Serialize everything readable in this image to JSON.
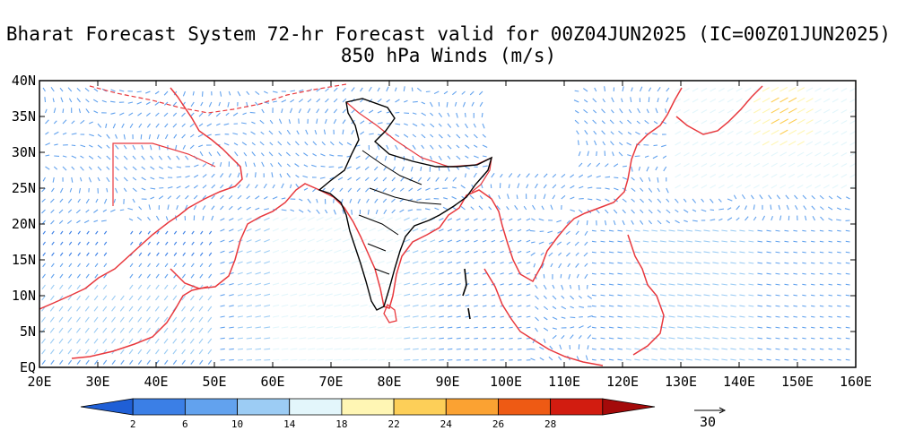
{
  "title_line1": "Bharat Forecast System 72-hr Forecast valid for 00Z04JUN2025 (IC=00Z01JUN2025)",
  "title_line2": "850 hPa Winds (m/s)",
  "lat_ticks": [
    "EQ",
    "5N",
    "10N",
    "15N",
    "20N",
    "25N",
    "30N",
    "35N",
    "40N"
  ],
  "lon_ticks": [
    "20E",
    "30E",
    "40E",
    "50E",
    "60E",
    "70E",
    "80E",
    "90E",
    "100E",
    "110E",
    "120E",
    "130E",
    "140E",
    "150E",
    "160E"
  ],
  "map": {
    "projection": "lat-lon",
    "lon_range": [
      20,
      160
    ],
    "lat_range": [
      0,
      40
    ],
    "field": "850 hPa wind vectors",
    "boundary_colors": {
      "countries": "#e8383d",
      "india_states": "#000000"
    }
  },
  "colorbar": {
    "labels": [
      "2",
      "6",
      "10",
      "14",
      "18",
      "22",
      "24",
      "26",
      "28"
    ],
    "colors": [
      "#1f5fd6",
      "#3b7fe6",
      "#62a2ee",
      "#9cccf4",
      "#e3f6fb",
      "#fff6b4",
      "#fdcf58",
      "#fba232",
      "#ee5a14",
      "#d21c10",
      "#a40a0a"
    ]
  },
  "reference_vector": {
    "label": "30"
  }
}
